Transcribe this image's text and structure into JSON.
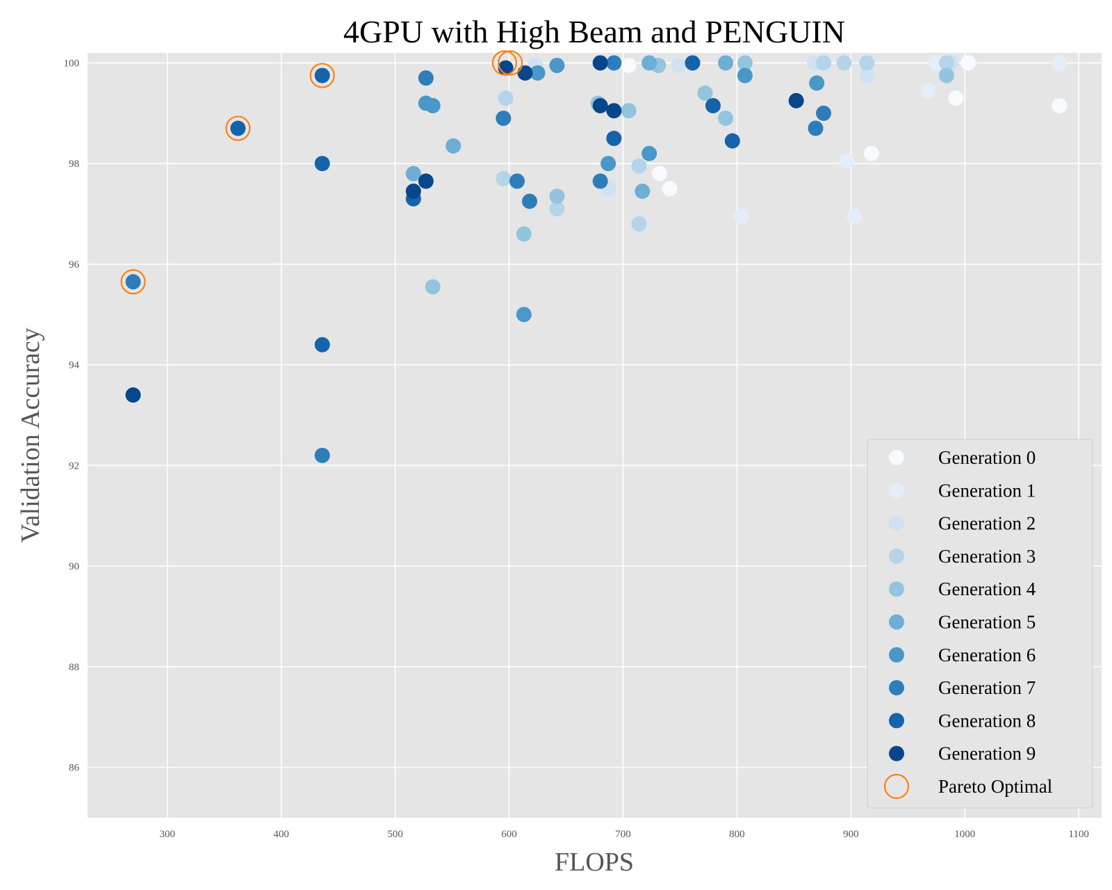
{
  "chart_data": {
    "type": "scatter",
    "title": "4GPU with High Beam and PENGUIN",
    "xlabel": "FLOPS",
    "ylabel": "Validation Accuracy",
    "xlim": [
      230,
      1120
    ],
    "ylim": [
      85,
      100.2
    ],
    "xticks": [
      300,
      400,
      500,
      600,
      700,
      800,
      900,
      1000,
      1100
    ],
    "yticks": [
      86,
      88,
      90,
      92,
      94,
      96,
      98,
      100
    ],
    "grid": true,
    "legend_position": "lower-right",
    "series": [
      {
        "name": "Generation 0",
        "color": "#f7fbff",
        "points": [
          [
            705,
            99.95
          ],
          [
            732,
            97.8
          ],
          [
            741,
            97.5
          ],
          [
            918,
            98.2
          ],
          [
            992,
            99.3
          ],
          [
            1083,
            99.15
          ],
          [
            1003,
            100
          ]
        ]
      },
      {
        "name": "Generation 1",
        "color": "#e3eef9",
        "points": [
          [
            804,
            96.95
          ],
          [
            896,
            98.05
          ],
          [
            903,
            96.95
          ],
          [
            968,
            99.45
          ],
          [
            1083,
            100
          ],
          [
            975,
            100
          ]
        ]
      },
      {
        "name": "Generation 2",
        "color": "#cfe1f2",
        "points": [
          [
            687,
            97.5
          ],
          [
            749,
            99.95
          ],
          [
            914,
            99.75
          ],
          [
            868,
            100
          ],
          [
            623,
            99.95
          ],
          [
            988,
            100
          ]
        ]
      },
      {
        "name": "Generation 3",
        "color": "#b5d4e9",
        "points": [
          [
            595,
            97.7
          ],
          [
            597,
            99.3
          ],
          [
            642,
            97.1
          ],
          [
            714,
            96.8
          ],
          [
            714,
            97.95
          ],
          [
            876,
            100
          ],
          [
            894,
            100
          ],
          [
            914,
            100
          ],
          [
            984,
            100
          ]
        ]
      },
      {
        "name": "Generation 4",
        "color": "#93c4de",
        "points": [
          [
            533,
            95.55
          ],
          [
            613,
            96.6
          ],
          [
            642,
            97.35
          ],
          [
            678,
            99.2
          ],
          [
            705,
            99.05
          ],
          [
            731,
            99.95
          ],
          [
            772,
            99.4
          ],
          [
            790,
            98.9
          ],
          [
            807,
            100
          ],
          [
            984,
            99.75
          ]
        ]
      },
      {
        "name": "Generation 5",
        "color": "#6daed5",
        "points": [
          [
            516,
            97.8
          ],
          [
            551,
            98.35
          ],
          [
            717,
            97.45
          ],
          [
            723,
            100
          ],
          [
            790,
            100
          ]
        ]
      },
      {
        "name": "Generation 6",
        "color": "#4a97c9",
        "points": [
          [
            527,
            99.2
          ],
          [
            533,
            99.15
          ],
          [
            613,
            95.0
          ],
          [
            625,
            99.8
          ],
          [
            642,
            99.95
          ],
          [
            687,
            98.0
          ],
          [
            723,
            98.2
          ],
          [
            807,
            99.75
          ],
          [
            870,
            99.6
          ]
        ]
      },
      {
        "name": "Generation 7",
        "color": "#2d7dbb",
        "points": [
          [
            270,
            95.65
          ],
          [
            436,
            92.2
          ],
          [
            527,
            99.7
          ],
          [
            595,
            98.9
          ],
          [
            607,
            97.65
          ],
          [
            618,
            97.25
          ],
          [
            680,
            97.65
          ],
          [
            692,
            100
          ],
          [
            869,
            98.7
          ],
          [
            876,
            99.0
          ]
        ]
      },
      {
        "name": "Generation 8",
        "color": "#1563aa",
        "points": [
          [
            516,
            97.3
          ],
          [
            362,
            98.7
          ],
          [
            436,
            94.4
          ],
          [
            436,
            98.0
          ],
          [
            436,
            99.75
          ],
          [
            692,
            98.5
          ],
          [
            761,
            100
          ],
          [
            779,
            99.15
          ],
          [
            796,
            98.45
          ]
        ]
      },
      {
        "name": "Generation 9",
        "color": "#08468b",
        "points": [
          [
            270,
            93.4
          ],
          [
            516,
            97.45
          ],
          [
            527,
            97.65
          ],
          [
            597,
            99.9
          ],
          [
            614,
            99.8
          ],
          [
            680,
            100
          ],
          [
            680,
            99.15
          ],
          [
            692,
            99.05
          ],
          [
            852,
            99.25
          ]
        ]
      }
    ],
    "pareto_optimal": {
      "name": "Pareto Optimal",
      "color": "#ff7f0e",
      "points": [
        [
          270,
          95.65
        ],
        [
          362,
          98.7
        ],
        [
          436,
          99.75
        ],
        [
          596,
          100
        ],
        [
          601,
          100
        ]
      ]
    }
  }
}
